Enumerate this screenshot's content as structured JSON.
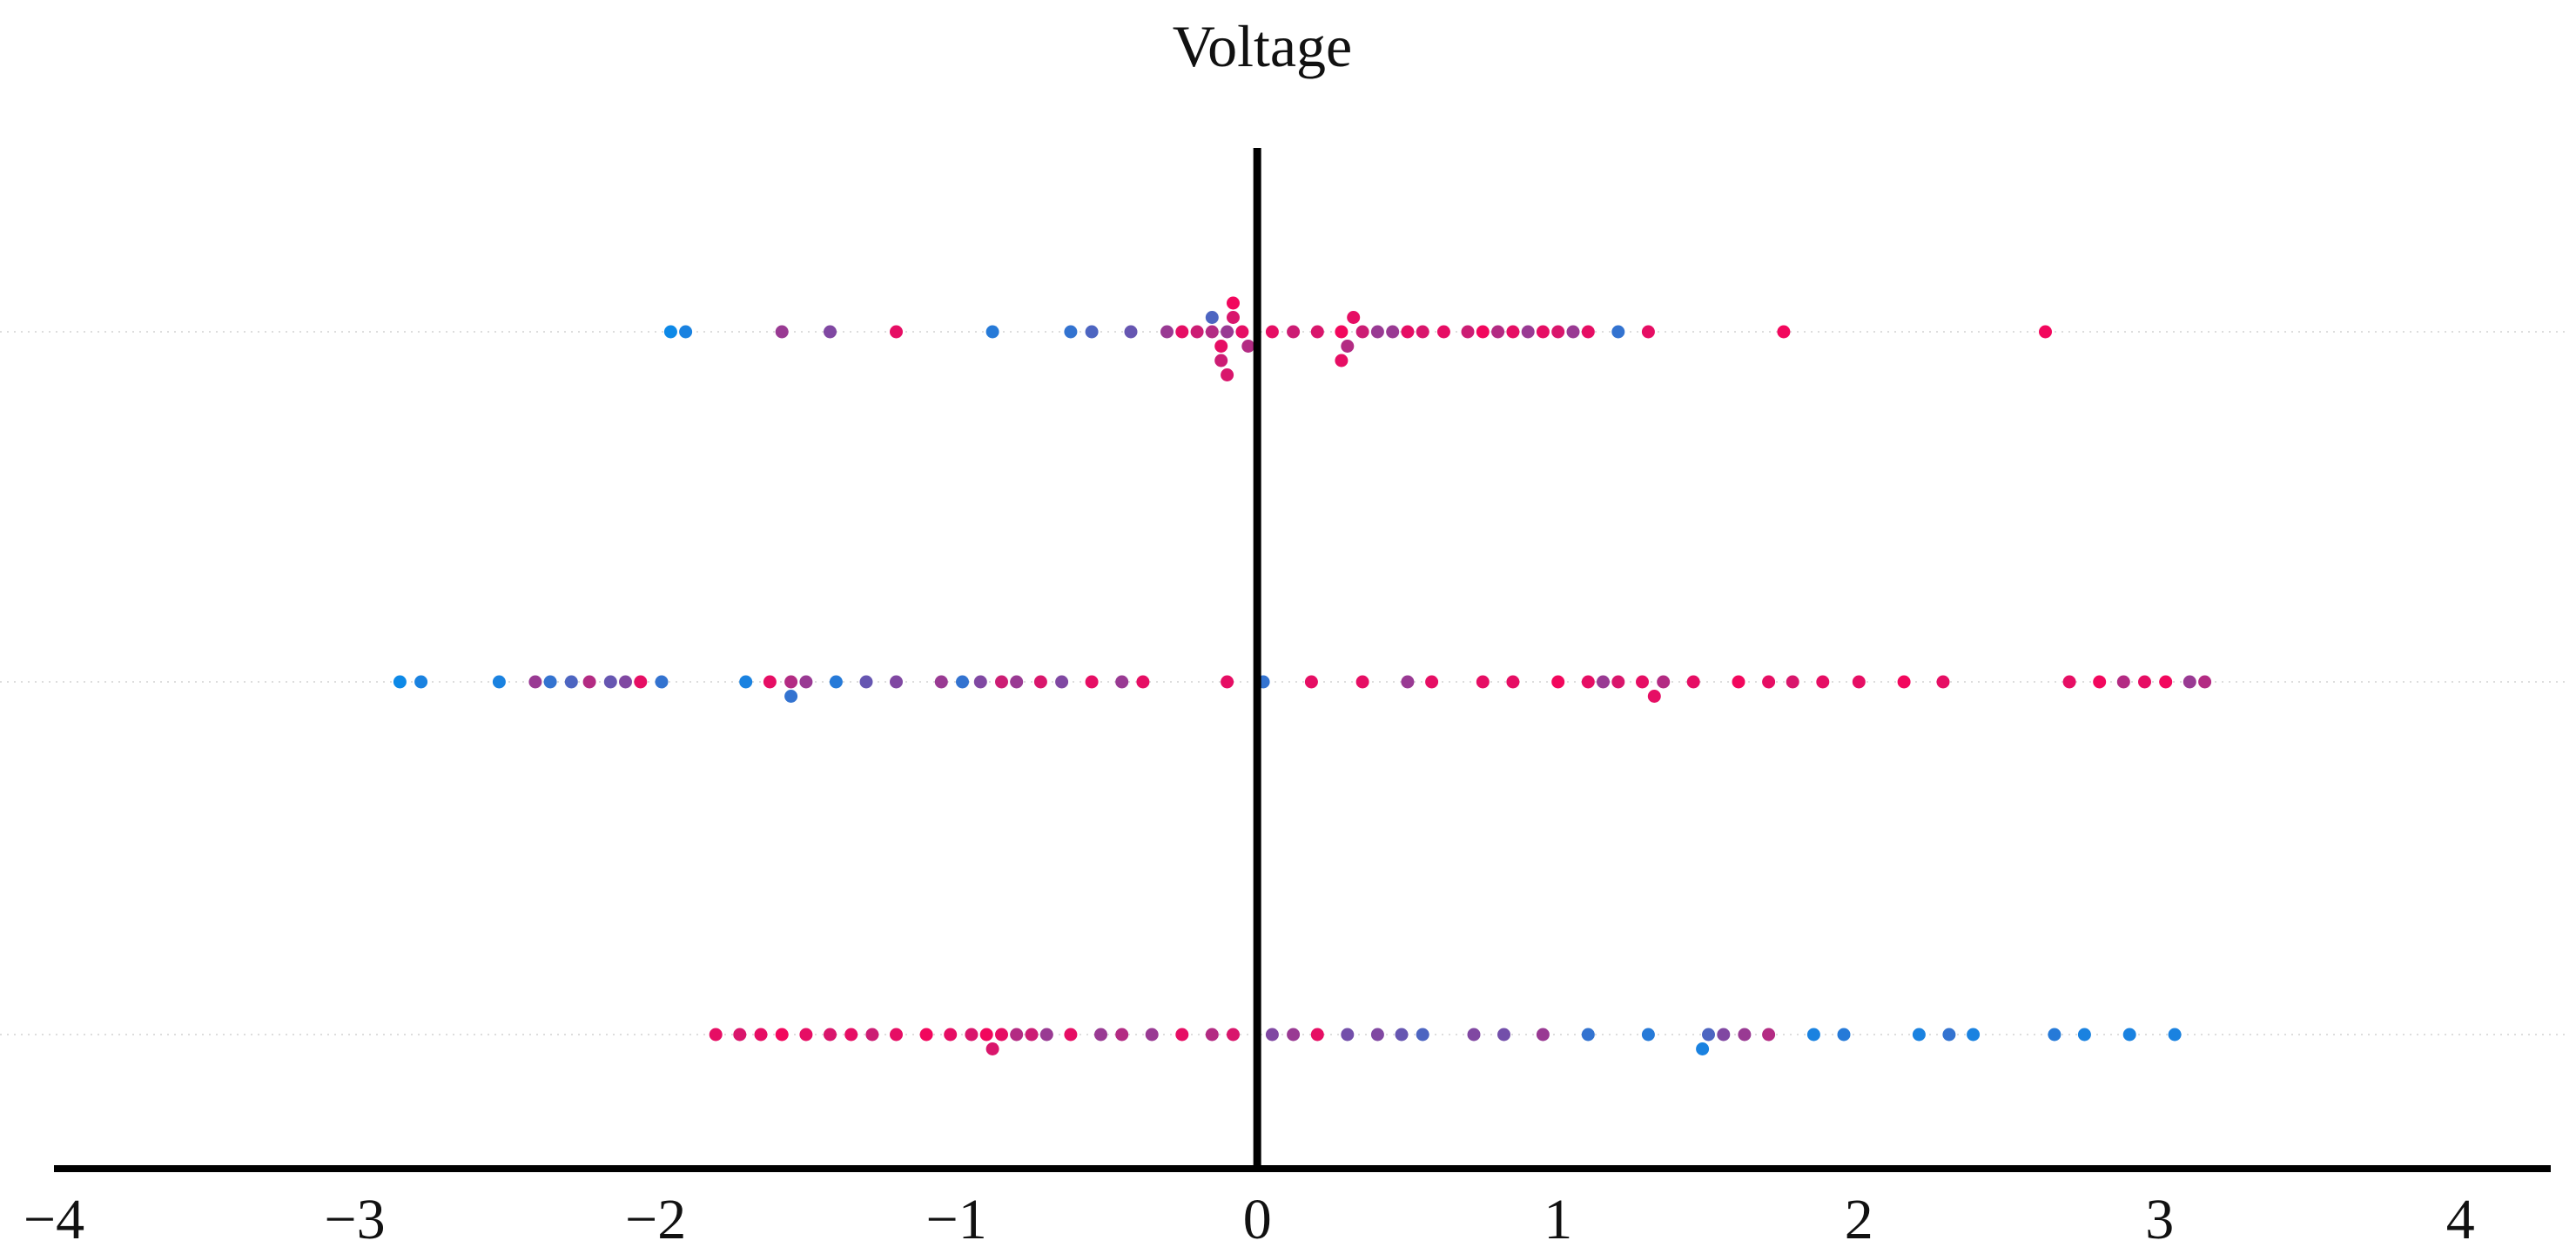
{
  "chart_data": {
    "type": "scatter",
    "subtype": "beeswarm",
    "title": "Voltage",
    "xlabel": "",
    "ylabel": "",
    "xlim": [
      -4,
      4.3
    ],
    "xticks": [
      -4,
      -3,
      -2,
      -1,
      0,
      1,
      2,
      3,
      4
    ],
    "xtick_labels": [
      "−4",
      "−3",
      "−2",
      "−1",
      "0",
      "1",
      "2",
      "3",
      "4"
    ],
    "grid": false,
    "legend": "none",
    "colors": {
      "low": "#0090ef",
      "high": "#ff0055",
      "axis": "#000000",
      "guide": "#dddddd"
    },
    "series": [
      {
        "name": "row-1",
        "row": 1,
        "values": [
          -1.95,
          -1.9,
          -1.58,
          -1.42,
          -1.2,
          -0.88,
          -0.62,
          -0.55,
          -0.42,
          -0.3,
          -0.25,
          -0.2,
          -0.15,
          -0.12,
          -0.1,
          -0.08,
          -0.05,
          -0.03,
          -0.12,
          -0.08,
          0.05,
          0.12,
          0.2,
          0.28,
          0.3,
          0.32,
          0.35,
          0.4,
          0.5,
          0.55,
          0.62,
          0.7,
          0.75,
          0.8,
          0.85,
          0.9,
          0.95,
          1.0,
          1.05,
          1.1,
          1.2,
          1.3,
          1.75,
          2.62,
          -0.15,
          -0.1,
          0.28,
          0.45
        ],
        "color_values": [
          0.05,
          0.1,
          0.6,
          0.5,
          0.9,
          0.15,
          0.2,
          0.3,
          0.4,
          0.6,
          0.9,
          0.8,
          0.7,
          0.9,
          0.6,
          0.85,
          0.9,
          0.7,
          0.8,
          0.95,
          0.9,
          0.8,
          0.85,
          0.95,
          0.7,
          0.9,
          0.8,
          0.6,
          0.9,
          0.85,
          0.9,
          0.8,
          0.95,
          0.7,
          0.9,
          0.6,
          0.9,
          0.85,
          0.6,
          0.9,
          0.2,
          0.9,
          0.95,
          0.95,
          0.3,
          0.85,
          0.9,
          0.6
        ]
      },
      {
        "name": "row-2",
        "row": 2,
        "values": [
          -2.85,
          -2.78,
          -2.52,
          -2.4,
          -2.35,
          -2.28,
          -2.22,
          -2.15,
          -2.1,
          -2.05,
          -1.98,
          -1.7,
          -1.62,
          -1.55,
          -1.5,
          -1.4,
          -1.3,
          -1.2,
          -1.05,
          -0.98,
          -0.92,
          -0.85,
          -0.8,
          -0.72,
          -0.65,
          -0.55,
          -0.45,
          -0.38,
          -0.1,
          0.02,
          0.18,
          0.35,
          0.5,
          0.58,
          0.75,
          0.85,
          1.0,
          1.1,
          1.15,
          1.2,
          1.28,
          1.35,
          1.45,
          1.6,
          1.7,
          1.78,
          1.88,
          2.0,
          2.15,
          2.28,
          2.7,
          2.8,
          2.88,
          2.95,
          3.02,
          3.1,
          3.15,
          -1.55,
          1.32
        ],
        "color_values": [
          0.05,
          0.1,
          0.1,
          0.6,
          0.2,
          0.3,
          0.7,
          0.4,
          0.5,
          0.9,
          0.2,
          0.1,
          0.9,
          0.7,
          0.6,
          0.15,
          0.4,
          0.5,
          0.6,
          0.2,
          0.5,
          0.8,
          0.6,
          0.85,
          0.5,
          0.9,
          0.6,
          0.9,
          0.9,
          0.2,
          0.9,
          0.9,
          0.6,
          0.9,
          0.9,
          0.9,
          0.95,
          0.9,
          0.6,
          0.85,
          0.9,
          0.7,
          0.9,
          0.95,
          0.9,
          0.85,
          0.9,
          0.9,
          0.95,
          0.9,
          0.9,
          0.95,
          0.7,
          0.9,
          0.95,
          0.6,
          0.7,
          0.2,
          0.9
        ]
      },
      {
        "name": "row-3",
        "row": 3,
        "values": [
          -1.8,
          -1.72,
          -1.65,
          -1.58,
          -1.5,
          -1.42,
          -1.35,
          -1.28,
          -1.2,
          -1.1,
          -1.02,
          -0.95,
          -0.9,
          -0.85,
          -0.8,
          -0.75,
          -0.7,
          -0.62,
          -0.52,
          -0.45,
          -0.35,
          -0.25,
          -0.15,
          -0.08,
          0.05,
          0.12,
          0.2,
          0.3,
          0.4,
          0.48,
          0.55,
          0.72,
          0.82,
          0.95,
          1.1,
          1.3,
          1.5,
          1.55,
          1.62,
          1.7,
          1.85,
          1.95,
          2.2,
          2.3,
          2.38,
          2.65,
          2.75,
          2.9,
          3.05,
          -0.88,
          1.48
        ],
        "color_values": [
          0.9,
          0.85,
          0.9,
          0.95,
          0.9,
          0.85,
          0.9,
          0.8,
          0.9,
          0.95,
          0.9,
          0.85,
          0.95,
          0.9,
          0.7,
          0.8,
          0.6,
          0.9,
          0.6,
          0.7,
          0.6,
          0.9,
          0.7,
          0.85,
          0.5,
          0.6,
          0.9,
          0.45,
          0.5,
          0.4,
          0.3,
          0.5,
          0.45,
          0.6,
          0.2,
          0.15,
          0.3,
          0.5,
          0.6,
          0.7,
          0.1,
          0.15,
          0.1,
          0.2,
          0.1,
          0.15,
          0.1,
          0.1,
          0.1,
          0.85,
          0.1
        ]
      }
    ]
  }
}
